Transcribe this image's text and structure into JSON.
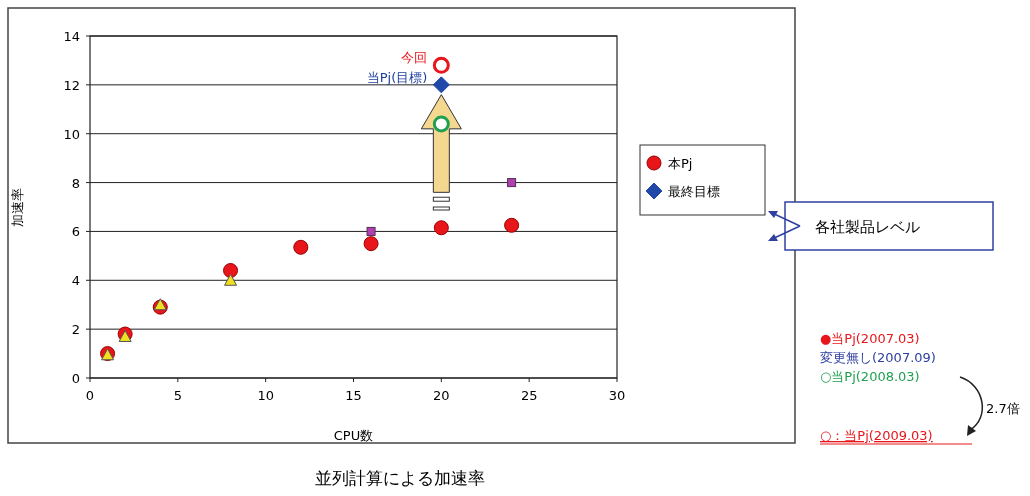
{
  "chart_data": {
    "type": "scatter",
    "title": "並列計算による加速率",
    "xlabel": "CPU数",
    "ylabel": "加速率",
    "xlim": [
      0,
      30
    ],
    "xticks": [
      0,
      5,
      10,
      15,
      20,
      25,
      30
    ],
    "ylim": [
      0,
      14
    ],
    "yticks": [
      0,
      2,
      4,
      6,
      8,
      10,
      12,
      14
    ],
    "grid": "y",
    "legend": "right",
    "series": [
      {
        "name": "本Pj",
        "color": "#e8161b",
        "marker": "circle",
        "x": [
          1,
          2,
          4,
          8,
          12,
          16,
          20,
          24
        ],
        "values": [
          1.0,
          1.8,
          2.9,
          4.4,
          5.35,
          5.5,
          6.15,
          6.25
        ]
      },
      {
        "color": "#b040b0",
        "marker": "square",
        "x": [
          16,
          24
        ],
        "values": [
          6.0,
          8.0
        ]
      },
      {
        "color": "#f0e020",
        "marker": "triangle",
        "x": [
          1,
          2,
          4,
          8
        ],
        "values": [
          0.95,
          1.7,
          3.0,
          4.0
        ]
      },
      {
        "name": "最終目標",
        "color": "#2048a8",
        "marker": "diamond",
        "x": [
          20
        ],
        "values": [
          12
        ]
      },
      {
        "color": "#20a050",
        "marker": "circle",
        "x": [
          20
        ],
        "values": [
          10.4
        ]
      },
      {
        "color": "#e8161b",
        "marker": "circle",
        "x": [
          20
        ],
        "values": [
          12.8
        ]
      }
    ],
    "annotations": [
      {
        "text": "今回",
        "x": 20,
        "y": 12.8
      },
      {
        "text": "当Pj(目標)",
        "x": 20,
        "y": 12
      },
      "各社製品レベル",
      "●当Pj(2007.03)",
      "変更無し(2007.09)",
      "○当Pj(2008.03)",
      "2.7倍",
      "○：当Pj(2009.03)"
    ]
  }
}
